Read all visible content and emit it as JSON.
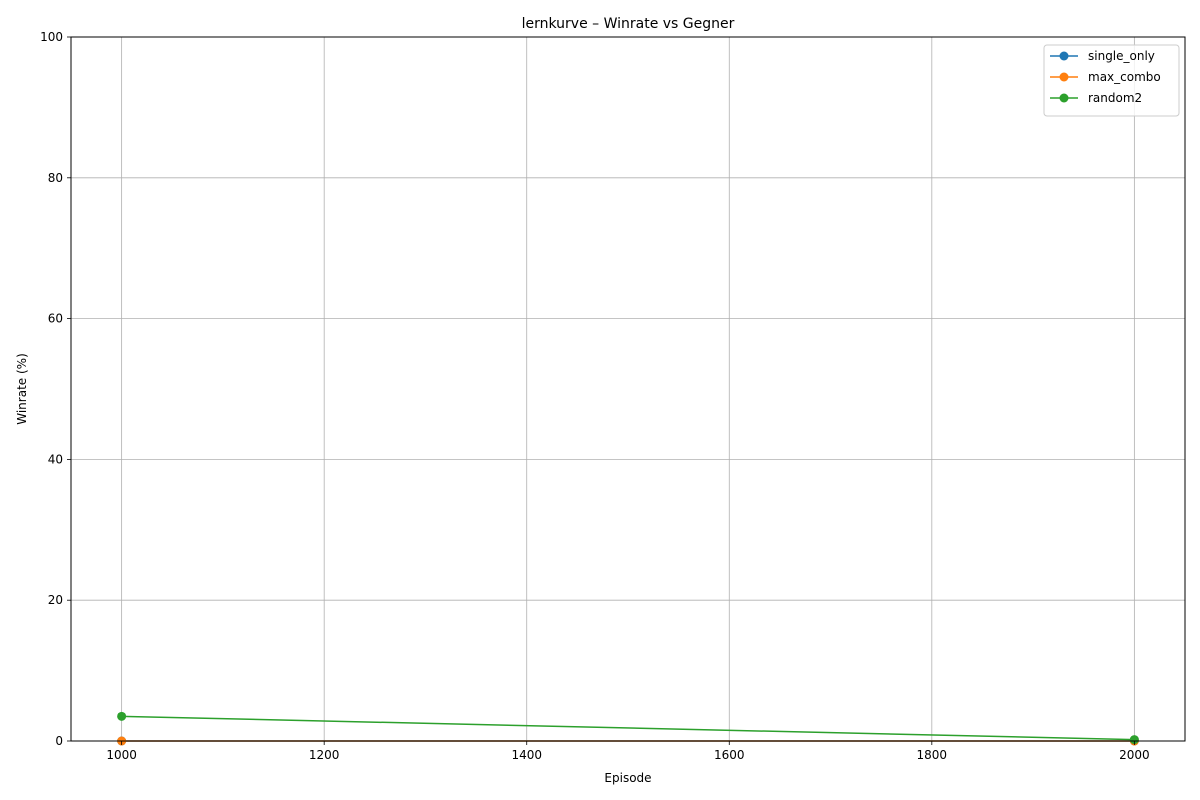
{
  "chart_data": {
    "type": "line",
    "title": "lernkurve – Winrate vs Gegner",
    "xlabel": "Episode",
    "ylabel": "Winrate (%)",
    "xlim": [
      950,
      2050
    ],
    "ylim": [
      0,
      100
    ],
    "xticks": [
      1000,
      1200,
      1400,
      1600,
      1800,
      2000
    ],
    "yticks": [
      0,
      20,
      40,
      60,
      80,
      100
    ],
    "grid": true,
    "legend_position": "top-right",
    "x": [
      1000,
      2000
    ],
    "series": [
      {
        "name": "single_only",
        "values": [
          0.0,
          0.0
        ],
        "color": "#1f77b4",
        "marker": "circle"
      },
      {
        "name": "max_combo",
        "values": [
          0.0,
          0.0
        ],
        "color": "#ff7f0e",
        "marker": "circle"
      },
      {
        "name": "random2",
        "values": [
          3.5,
          0.2
        ],
        "color": "#2ca02c",
        "marker": "circle"
      }
    ]
  }
}
